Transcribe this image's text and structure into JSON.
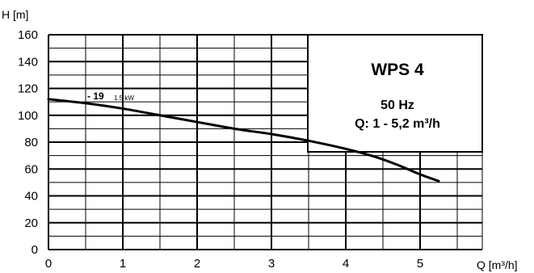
{
  "chart_data": {
    "type": "line",
    "title": "WPS 4",
    "subtitle_lines": [
      "50 Hz",
      "Q: 1 - 5,2 m³/h"
    ],
    "xlabel": "Q [m³/h]",
    "ylabel": "H [m]",
    "xlim": [
      0,
      5.8
    ],
    "ylim": [
      0,
      160
    ],
    "x_ticks": [
      0,
      1,
      2,
      3,
      4,
      5
    ],
    "y_ticks": [
      0,
      20,
      40,
      60,
      80,
      100,
      120,
      140,
      160
    ],
    "grid": true,
    "series": [
      {
        "label_main": "- 19",
        "label_sub": "1.5 kW",
        "x": [
          0,
          0.5,
          1,
          1.5,
          2,
          2.5,
          3,
          3.5,
          4,
          4.4,
          4.7,
          5,
          5.25
        ],
        "y": [
          112,
          109,
          105,
          100,
          95,
          90,
          86,
          81,
          75,
          69,
          63,
          56,
          51
        ]
      }
    ]
  }
}
